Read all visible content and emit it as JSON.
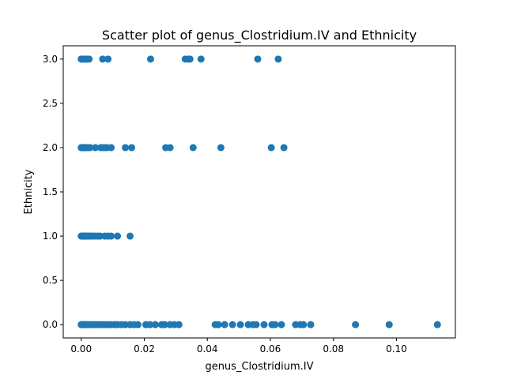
{
  "chart_data": {
    "type": "scatter",
    "title": "Scatter plot of genus_Clostridium.IV and Ethnicity",
    "xlabel": "genus_Clostridium.IV",
    "ylabel": "Ethnicity",
    "xlim": [
      -0.0057,
      0.1187
    ],
    "ylim": [
      -0.15,
      3.15
    ],
    "xticks": [
      0.0,
      0.02,
      0.04,
      0.06,
      0.08,
      0.1
    ],
    "xtick_labels": [
      "0.00",
      "0.02",
      "0.04",
      "0.06",
      "0.08",
      "0.10"
    ],
    "yticks": [
      0.0,
      0.5,
      1.0,
      1.5,
      2.0,
      2.5,
      3.0
    ],
    "ytick_labels": [
      "0.0",
      "0.5",
      "1.0",
      "1.5",
      "2.0",
      "2.5",
      "3.0"
    ],
    "grid": false,
    "color": "#1f77b4",
    "points": [
      {
        "x": 0.0,
        "y": 3
      },
      {
        "x": 0.0003,
        "y": 3
      },
      {
        "x": 0.0008,
        "y": 3
      },
      {
        "x": 0.0012,
        "y": 3
      },
      {
        "x": 0.0018,
        "y": 3
      },
      {
        "x": 0.0025,
        "y": 3
      },
      {
        "x": 0.0068,
        "y": 3
      },
      {
        "x": 0.0085,
        "y": 3
      },
      {
        "x": 0.022,
        "y": 3
      },
      {
        "x": 0.033,
        "y": 3
      },
      {
        "x": 0.034,
        "y": 3
      },
      {
        "x": 0.0345,
        "y": 3
      },
      {
        "x": 0.038,
        "y": 3
      },
      {
        "x": 0.056,
        "y": 3
      },
      {
        "x": 0.0625,
        "y": 3
      },
      {
        "x": 0.0,
        "y": 2
      },
      {
        "x": 0.0002,
        "y": 2
      },
      {
        "x": 0.0005,
        "y": 2
      },
      {
        "x": 0.0008,
        "y": 2
      },
      {
        "x": 0.0011,
        "y": 2
      },
      {
        "x": 0.0014,
        "y": 2
      },
      {
        "x": 0.0018,
        "y": 2
      },
      {
        "x": 0.0022,
        "y": 2
      },
      {
        "x": 0.0028,
        "y": 2
      },
      {
        "x": 0.0045,
        "y": 2
      },
      {
        "x": 0.0062,
        "y": 2
      },
      {
        "x": 0.0068,
        "y": 2
      },
      {
        "x": 0.0075,
        "y": 2
      },
      {
        "x": 0.0082,
        "y": 2
      },
      {
        "x": 0.0095,
        "y": 2
      },
      {
        "x": 0.014,
        "y": 2
      },
      {
        "x": 0.016,
        "y": 2
      },
      {
        "x": 0.0268,
        "y": 2
      },
      {
        "x": 0.0282,
        "y": 2
      },
      {
        "x": 0.0355,
        "y": 2
      },
      {
        "x": 0.0443,
        "y": 2
      },
      {
        "x": 0.0603,
        "y": 2
      },
      {
        "x": 0.0643,
        "y": 2
      },
      {
        "x": 0.0,
        "y": 1
      },
      {
        "x": 0.0003,
        "y": 1
      },
      {
        "x": 0.0006,
        "y": 1
      },
      {
        "x": 0.0009,
        "y": 1
      },
      {
        "x": 0.0012,
        "y": 1
      },
      {
        "x": 0.0015,
        "y": 1
      },
      {
        "x": 0.0019,
        "y": 1
      },
      {
        "x": 0.0024,
        "y": 1
      },
      {
        "x": 0.003,
        "y": 1
      },
      {
        "x": 0.0036,
        "y": 1
      },
      {
        "x": 0.0044,
        "y": 1
      },
      {
        "x": 0.0052,
        "y": 1
      },
      {
        "x": 0.006,
        "y": 1
      },
      {
        "x": 0.0075,
        "y": 1
      },
      {
        "x": 0.0085,
        "y": 1
      },
      {
        "x": 0.0095,
        "y": 1
      },
      {
        "x": 0.0115,
        "y": 1
      },
      {
        "x": 0.0155,
        "y": 1
      },
      {
        "x": 0.0,
        "y": 0
      },
      {
        "x": 0.0002,
        "y": 0
      },
      {
        "x": 0.0004,
        "y": 0
      },
      {
        "x": 0.0007,
        "y": 0
      },
      {
        "x": 0.001,
        "y": 0
      },
      {
        "x": 0.0013,
        "y": 0
      },
      {
        "x": 0.0017,
        "y": 0
      },
      {
        "x": 0.0021,
        "y": 0
      },
      {
        "x": 0.0026,
        "y": 0
      },
      {
        "x": 0.0032,
        "y": 0
      },
      {
        "x": 0.0038,
        "y": 0
      },
      {
        "x": 0.0045,
        "y": 0
      },
      {
        "x": 0.0052,
        "y": 0
      },
      {
        "x": 0.006,
        "y": 0
      },
      {
        "x": 0.0068,
        "y": 0
      },
      {
        "x": 0.0076,
        "y": 0
      },
      {
        "x": 0.0085,
        "y": 0
      },
      {
        "x": 0.0094,
        "y": 0
      },
      {
        "x": 0.0105,
        "y": 0
      },
      {
        "x": 0.0115,
        "y": 0
      },
      {
        "x": 0.0128,
        "y": 0
      },
      {
        "x": 0.014,
        "y": 0
      },
      {
        "x": 0.0155,
        "y": 0
      },
      {
        "x": 0.0168,
        "y": 0
      },
      {
        "x": 0.018,
        "y": 0
      },
      {
        "x": 0.0205,
        "y": 0
      },
      {
        "x": 0.0218,
        "y": 0
      },
      {
        "x": 0.0235,
        "y": 0
      },
      {
        "x": 0.0255,
        "y": 0
      },
      {
        "x": 0.0265,
        "y": 0
      },
      {
        "x": 0.0282,
        "y": 0
      },
      {
        "x": 0.0296,
        "y": 0
      },
      {
        "x": 0.031,
        "y": 0
      },
      {
        "x": 0.0425,
        "y": 0
      },
      {
        "x": 0.0435,
        "y": 0
      },
      {
        "x": 0.0455,
        "y": 0
      },
      {
        "x": 0.048,
        "y": 0
      },
      {
        "x": 0.0505,
        "y": 0
      },
      {
        "x": 0.053,
        "y": 0
      },
      {
        "x": 0.0545,
        "y": 0
      },
      {
        "x": 0.0555,
        "y": 0
      },
      {
        "x": 0.058,
        "y": 0
      },
      {
        "x": 0.0605,
        "y": 0
      },
      {
        "x": 0.0615,
        "y": 0
      },
      {
        "x": 0.0635,
        "y": 0
      },
      {
        "x": 0.068,
        "y": 0
      },
      {
        "x": 0.0695,
        "y": 0
      },
      {
        "x": 0.0705,
        "y": 0
      },
      {
        "x": 0.0728,
        "y": 0
      },
      {
        "x": 0.087,
        "y": 0
      },
      {
        "x": 0.0977,
        "y": 0
      },
      {
        "x": 0.113,
        "y": 0
      }
    ]
  }
}
